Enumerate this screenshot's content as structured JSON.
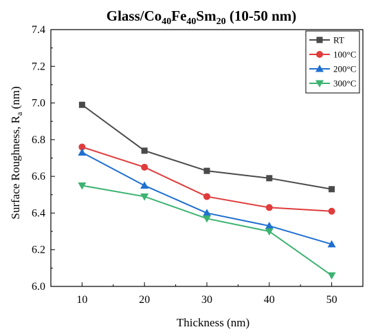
{
  "chart_data": {
    "type": "line",
    "title": {
      "parts": [
        {
          "text": "Glass/Co",
          "sub": false
        },
        {
          "text": "40",
          "sub": true
        },
        {
          "text": "Fe",
          "sub": false
        },
        {
          "text": "40",
          "sub": true
        },
        {
          "text": "Sm",
          "sub": false
        },
        {
          "text": "20",
          "sub": true
        },
        {
          "text": " (10-50 nm)",
          "sub": false
        }
      ]
    },
    "xlabel": "Thickness (nm)",
    "ylabel": {
      "parts": [
        {
          "text": "Surface Roughness, R",
          "sub": false
        },
        {
          "text": "a",
          "sub": true
        },
        {
          "text": " (nm)",
          "sub": false
        }
      ]
    },
    "x": [
      10,
      20,
      30,
      40,
      50
    ],
    "xlim": [
      5,
      55
    ],
    "ylim": [
      6.0,
      7.4
    ],
    "xticks": [
      "10",
      "20",
      "30",
      "40",
      "50"
    ],
    "yticks": [
      "6.0",
      "6.2",
      "6.4",
      "6.6",
      "6.8",
      "7.0",
      "7.2",
      "7.4"
    ],
    "grid": false,
    "legend_position": "top-right",
    "series": [
      {
        "name": "RT",
        "color": "#4a4a4a",
        "marker": "square",
        "values": [
          6.99,
          6.74,
          6.63,
          6.59,
          6.53
        ]
      },
      {
        "name": "100°C",
        "color": "#e03c3c",
        "marker": "circle",
        "values": [
          6.76,
          6.65,
          6.49,
          6.43,
          6.41
        ]
      },
      {
        "name": "200°C",
        "color": "#1f6fd1",
        "marker": "triangle-up",
        "values": [
          6.73,
          6.55,
          6.4,
          6.33,
          6.23
        ]
      },
      {
        "name": "300°C",
        "color": "#3cb371",
        "marker": "triangle-down",
        "values": [
          6.55,
          6.49,
          6.37,
          6.3,
          6.06
        ]
      }
    ]
  }
}
